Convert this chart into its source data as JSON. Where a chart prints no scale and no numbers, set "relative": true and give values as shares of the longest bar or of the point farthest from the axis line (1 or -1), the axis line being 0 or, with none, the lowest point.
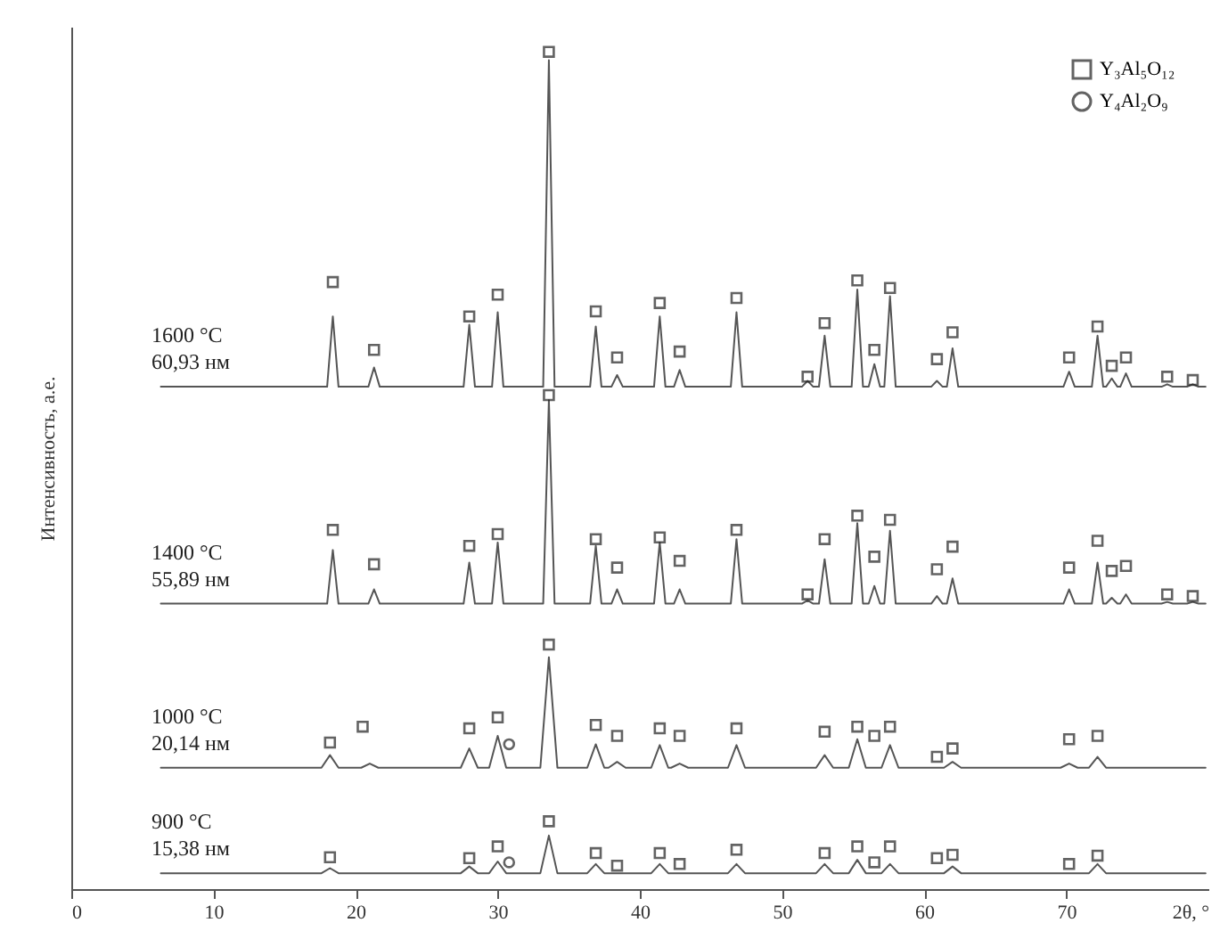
{
  "chart_data": {
    "type": "line",
    "relative": true,
    "xlabel": "2θ, °",
    "ylabel": "Интенсивность, а.е.",
    "xlim": [
      0,
      80
    ],
    "xticks": [
      0,
      10,
      20,
      30,
      40,
      50,
      60,
      70
    ],
    "grid": false,
    "legend": "top right",
    "series": [
      {
        "type": "line",
        "color": "#555555",
        "x": [
          6.3,
          18.0,
          18.4,
          18.8,
          20.9,
          21.3,
          21.7,
          27.6,
          28.0,
          28.4,
          29.6,
          30.0,
          30.4,
          33.2,
          33.6,
          34.0,
          36.5,
          36.9,
          37.3,
          38.0,
          38.4,
          38.8,
          41.0,
          41.4,
          41.8,
          42.4,
          42.8,
          43.2,
          46.4,
          46.8,
          47.2,
          51.4,
          51.8,
          52.2,
          52.6,
          53.0,
          53.4,
          54.9,
          55.3,
          55.7,
          56.1,
          56.5,
          56.9,
          57.2,
          57.6,
          58.0,
          60.5,
          60.9,
          61.3,
          61.6,
          62.0,
          62.4,
          69.8,
          70.2,
          70.6,
          71.8,
          72.2,
          72.6,
          72.8,
          73.2,
          73.6,
          73.8,
          74.2,
          74.6,
          76.7,
          77.1,
          77.5,
          78.5,
          78.9,
          79.3,
          79.8
        ],
        "values": [
          0.6,
          0.6,
          0.684,
          0.6,
          0.6,
          0.623,
          0.6,
          0.6,
          0.674,
          0.6,
          0.6,
          0.689,
          0.6,
          0.6,
          0.99,
          0.6,
          0.6,
          0.672,
          0.6,
          0.6,
          0.614,
          0.6,
          0.6,
          0.684,
          0.6,
          0.6,
          0.62,
          0.6,
          0.6,
          0.689,
          0.6,
          0.6,
          0.607,
          0.6,
          0.6,
          0.661,
          0.6,
          0.6,
          0.716,
          0.6,
          0.6,
          0.627,
          0.6,
          0.6,
          0.708,
          0.6,
          0.6,
          0.607,
          0.6,
          0.6,
          0.646,
          0.6,
          0.6,
          0.618,
          0.6,
          0.6,
          0.661,
          0.6,
          0.6,
          0.61,
          0.6,
          0.6,
          0.616,
          0.6,
          0.6,
          0.603,
          0.6,
          0.6,
          0.603,
          0.6,
          0.6
        ]
      },
      {
        "type": "line",
        "color": "#555555",
        "x": [
          6.3,
          18.0,
          18.4,
          18.8,
          20.9,
          21.3,
          21.7,
          27.6,
          28.0,
          28.4,
          29.6,
          30.0,
          30.4,
          33.2,
          33.6,
          34.0,
          36.5,
          36.9,
          37.3,
          38.0,
          38.4,
          38.8,
          41.0,
          41.4,
          41.8,
          42.4,
          42.8,
          43.2,
          46.4,
          46.8,
          47.2,
          51.4,
          51.8,
          52.2,
          52.6,
          53.0,
          53.4,
          54.9,
          55.3,
          55.7,
          56.1,
          56.5,
          56.9,
          57.2,
          57.6,
          58.0,
          60.5,
          60.9,
          61.3,
          61.6,
          62.0,
          62.4,
          69.8,
          70.2,
          70.6,
          71.8,
          72.2,
          72.6,
          72.8,
          73.2,
          73.6,
          73.8,
          74.2,
          74.6,
          76.7,
          77.1,
          77.5,
          78.5,
          78.9,
          79.3,
          79.8
        ],
        "values": [
          0.341,
          0.341,
          0.405,
          0.341,
          0.341,
          0.358,
          0.341,
          0.341,
          0.39,
          0.341,
          0.341,
          0.414,
          0.341,
          0.341,
          0.584,
          0.341,
          0.341,
          0.41,
          0.341,
          0.341,
          0.358,
          0.341,
          0.341,
          0.414,
          0.341,
          0.341,
          0.358,
          0.341,
          0.341,
          0.418,
          0.341,
          0.341,
          0.345,
          0.341,
          0.341,
          0.394,
          0.341,
          0.341,
          0.437,
          0.341,
          0.341,
          0.362,
          0.341,
          0.341,
          0.428,
          0.341,
          0.341,
          0.35,
          0.341,
          0.341,
          0.371,
          0.341,
          0.341,
          0.358,
          0.341,
          0.341,
          0.39,
          0.341,
          0.341,
          0.348,
          0.341,
          0.341,
          0.352,
          0.341,
          0.341,
          0.343,
          0.341,
          0.341,
          0.343,
          0.341,
          0.341
        ]
      },
      {
        "type": "line",
        "color": "#555555",
        "x": [
          6.3,
          17.6,
          18.2,
          18.8,
          20.4,
          21.0,
          21.6,
          27.4,
          28.0,
          28.6,
          29.4,
          30.0,
          30.6,
          33.0,
          33.6,
          34.2,
          36.3,
          36.9,
          37.5,
          37.8,
          38.4,
          39.0,
          40.8,
          41.4,
          42.0,
          42.2,
          42.8,
          43.4,
          46.2,
          46.8,
          47.4,
          52.4,
          53.0,
          53.6,
          54.7,
          55.3,
          55.9,
          57.0,
          57.6,
          58.2,
          61.4,
          62.0,
          62.6,
          69.6,
          70.2,
          70.8,
          71.6,
          72.2,
          72.8,
          79.8
        ],
        "values": [
          0.145,
          0.145,
          0.16,
          0.145,
          0.145,
          0.15,
          0.145,
          0.145,
          0.168,
          0.145,
          0.145,
          0.183,
          0.145,
          0.145,
          0.277,
          0.145,
          0.145,
          0.173,
          0.145,
          0.145,
          0.152,
          0.145,
          0.145,
          0.172,
          0.145,
          0.145,
          0.15,
          0.145,
          0.145,
          0.172,
          0.145,
          0.145,
          0.16,
          0.145,
          0.145,
          0.179,
          0.145,
          0.145,
          0.172,
          0.145,
          0.145,
          0.152,
          0.145,
          0.145,
          0.15,
          0.145,
          0.145,
          0.158,
          0.145,
          0.145
        ]
      },
      {
        "type": "line",
        "color": "#555555",
        "x": [
          6.3,
          17.6,
          18.2,
          18.8,
          27.4,
          28.0,
          28.6,
          29.4,
          30.0,
          30.6,
          33.0,
          33.6,
          34.2,
          36.3,
          36.9,
          37.5,
          40.8,
          41.4,
          42.0,
          46.2,
          46.8,
          47.4,
          52.4,
          53.0,
          53.6,
          54.7,
          55.3,
          55.9,
          57.0,
          57.6,
          58.2,
          61.4,
          62.0,
          62.6,
          71.6,
          72.2,
          72.8,
          79.8
        ],
        "values": [
          0.019,
          0.019,
          0.025,
          0.019,
          0.019,
          0.027,
          0.019,
          0.019,
          0.033,
          0.019,
          0.019,
          0.064,
          0.019,
          0.019,
          0.03,
          0.019,
          0.019,
          0.03,
          0.019,
          0.019,
          0.03,
          0.019,
          0.019,
          0.03,
          0.019,
          0.019,
          0.035,
          0.019,
          0.019,
          0.03,
          0.019,
          0.019,
          0.027,
          0.019,
          0.019,
          0.03,
          0.019,
          0.019
        ]
      },
      {
        "type": "scatter",
        "name": "Y₃Al₅O₁₂",
        "color": "#222222",
        "marker": "square",
        "x": [
          18.4,
          21.3,
          28.0,
          30.0,
          33.6,
          36.9,
          38.4,
          41.4,
          42.8,
          46.8,
          51.8,
          53.0,
          55.3,
          56.5,
          57.6,
          60.9,
          62.0,
          70.2,
          72.2,
          73.2,
          74.2,
          77.1,
          78.9,
          18.4,
          21.3,
          28.0,
          30.0,
          33.6,
          36.9,
          38.4,
          41.4,
          42.8,
          46.8,
          51.8,
          53.0,
          55.3,
          56.5,
          57.6,
          60.9,
          62.0,
          70.2,
          72.2,
          73.2,
          74.2,
          77.1,
          78.9,
          18.2,
          20.5,
          28.0,
          30.0,
          33.6,
          36.9,
          38.4,
          41.4,
          42.8,
          46.8,
          53.0,
          55.3,
          56.5,
          57.6,
          60.9,
          62.0,
          70.2,
          72.2,
          18.2,
          28.0,
          30.0,
          33.6,
          36.9,
          38.4,
          41.4,
          42.8,
          46.8,
          53.0,
          55.3,
          56.5,
          57.6,
          60.9,
          62.0,
          70.2,
          72.2
        ],
        "values": [
          0.725,
          0.644,
          0.684,
          0.71,
          1.0,
          0.69,
          0.635,
          0.7,
          0.642,
          0.706,
          0.612,
          0.676,
          0.727,
          0.644,
          0.718,
          0.633,
          0.665,
          0.635,
          0.672,
          0.625,
          0.635,
          0.612,
          0.608,
          0.429,
          0.388,
          0.41,
          0.424,
          0.59,
          0.418,
          0.384,
          0.42,
          0.392,
          0.429,
          0.352,
          0.418,
          0.446,
          0.397,
          0.441,
          0.382,
          0.409,
          0.384,
          0.416,
          0.38,
          0.386,
          0.352,
          0.35,
          0.175,
          0.194,
          0.192,
          0.205,
          0.292,
          0.196,
          0.183,
          0.192,
          0.183,
          0.192,
          0.188,
          0.194,
          0.183,
          0.194,
          0.158,
          0.168,
          0.179,
          0.183,
          0.038,
          0.037,
          0.051,
          0.081,
          0.043,
          0.028,
          0.043,
          0.03,
          0.047,
          0.043,
          0.051,
          0.032,
          0.051,
          0.037,
          0.041,
          0.03,
          0.04
        ]
      },
      {
        "type": "scatter",
        "name": "Y₄Al₂O₉",
        "color": "#222222",
        "marker": "circle",
        "x": [
          30.8,
          30.8
        ],
        "values": [
          0.173,
          0.032
        ]
      }
    ],
    "annotations": [
      "1600 °C\n60,93 нм",
      "1400 °C\n55,89 нм",
      "1000 °C\n20,14 нм",
      "900 °C\n15,38 нм"
    ]
  }
}
